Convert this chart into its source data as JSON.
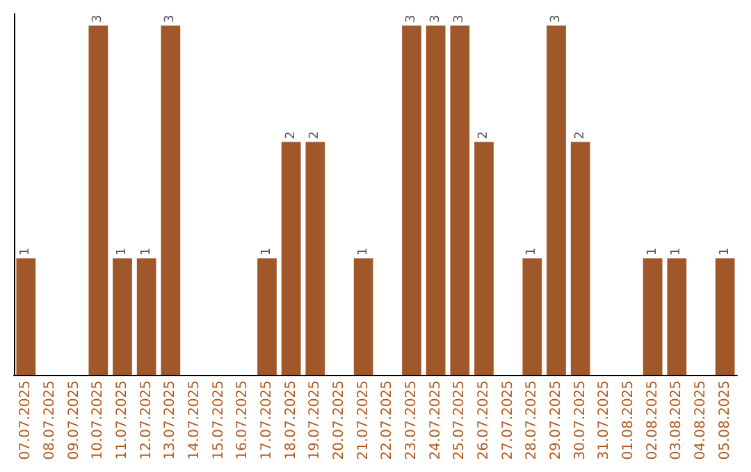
{
  "chart_data": {
    "type": "bar",
    "categories": [
      "07.07.2025",
      "08.07.2025",
      "09.07.2025",
      "10.07.2025",
      "11.07.2025",
      "12.07.2025",
      "13.07.2025",
      "14.07.2025",
      "15.07.2025",
      "16.07.2025",
      "17.07.2025",
      "18.07.2025",
      "19.07.2025",
      "20.07.2025",
      "21.07.2025",
      "22.07.2025",
      "23.07.2025",
      "24.07.2025",
      "25.07.2025",
      "26.07.2025",
      "27.07.2025",
      "28.07.2025",
      "29.07.2025",
      "30.07.2025",
      "31.07.2025",
      "01.08.2025",
      "02.08.2025",
      "03.08.2025",
      "04.08.2025",
      "05.08.2025"
    ],
    "values": [
      1,
      0,
      0,
      3,
      1,
      1,
      3,
      0,
      0,
      0,
      1,
      2,
      2,
      0,
      1,
      0,
      3,
      3,
      3,
      2,
      0,
      1,
      3,
      2,
      0,
      0,
      1,
      1,
      0,
      1
    ],
    "value_labels": [
      "1",
      null,
      null,
      "3",
      "1",
      "1",
      "3",
      null,
      null,
      null,
      "1",
      "2",
      "2",
      null,
      "1",
      null,
      "3",
      "3",
      "3",
      "2",
      null,
      "1",
      "3",
      "2",
      null,
      null,
      "1",
      "1",
      null,
      "1"
    ],
    "color": "#a0582a",
    "ylim": [
      0,
      3.1
    ],
    "tick_labels": "x"
  }
}
